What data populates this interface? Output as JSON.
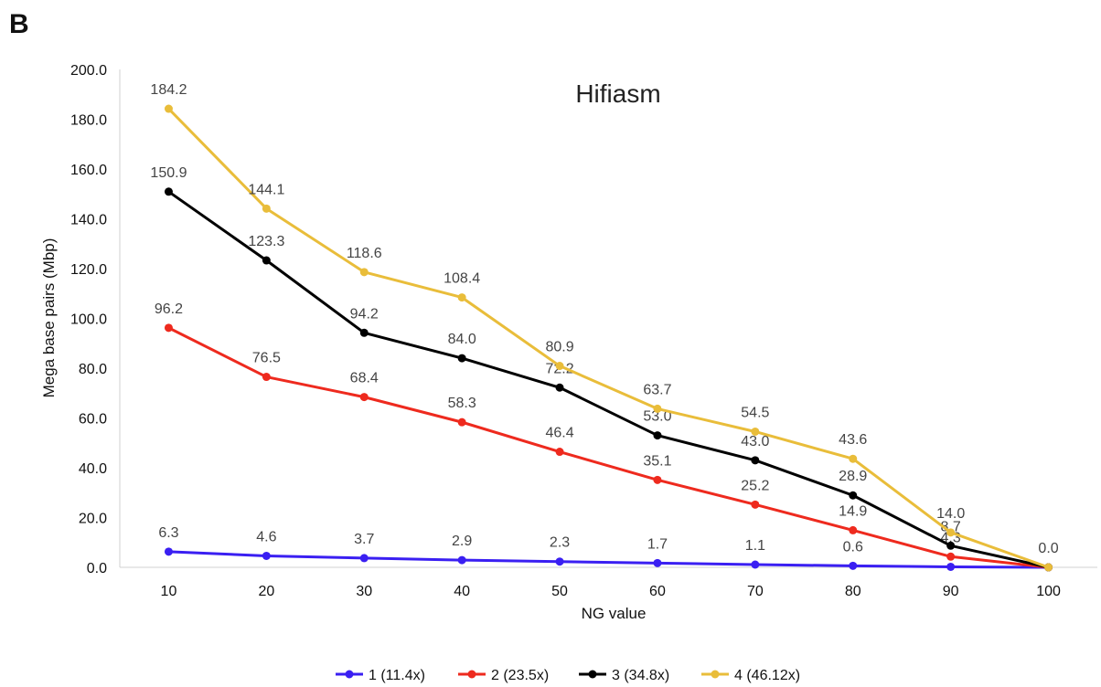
{
  "panel_label": "B",
  "chart_data": {
    "type": "line",
    "title": "Hifiasm",
    "xlabel": "NG value",
    "ylabel": "Mega base pairs (Mbp)",
    "x": [
      10,
      20,
      30,
      40,
      50,
      60,
      70,
      80,
      90,
      100
    ],
    "ylim": [
      0,
      200
    ],
    "yticks": [
      "0.0",
      "20.0",
      "40.0",
      "60.0",
      "80.0",
      "100.0",
      "120.0",
      "140.0",
      "160.0",
      "180.0",
      "200.0"
    ],
    "grid": false,
    "legend_position": "bottom",
    "series": [
      {
        "name": "1 (11.4x)",
        "color": "#3a1ff2",
        "values": [
          6.3,
          4.6,
          3.7,
          2.9,
          2.3,
          1.7,
          1.1,
          0.6,
          0.2,
          0.0
        ],
        "labels": [
          "6.3",
          "4.6",
          "3.7",
          "2.9",
          "2.3",
          "1.7",
          "1.1",
          "0.6",
          "",
          ""
        ]
      },
      {
        "name": "2 (23.5x)",
        "color": "#ee2a1e",
        "values": [
          96.2,
          76.5,
          68.4,
          58.3,
          46.4,
          35.1,
          25.2,
          14.9,
          4.3,
          0.0
        ],
        "labels": [
          "96.2",
          "76.5",
          "68.4",
          "58.3",
          "46.4",
          "35.1",
          "25.2",
          "14.9",
          "4.3",
          ""
        ]
      },
      {
        "name": "3 (34.8x)",
        "color": "#000000",
        "values": [
          150.9,
          123.3,
          94.2,
          84.0,
          72.2,
          53.0,
          43.0,
          28.9,
          8.7,
          0.0
        ],
        "labels": [
          "150.9",
          "123.3",
          "94.2",
          "84.0",
          "72.2",
          "53.0",
          "43.0",
          "28.9",
          "8.7",
          ""
        ]
      },
      {
        "name": "4 (46.12x)",
        "color": "#e9bd3a",
        "values": [
          184.2,
          144.1,
          118.6,
          108.4,
          80.9,
          63.7,
          54.5,
          43.6,
          14.0,
          0.0
        ],
        "labels": [
          "184.2",
          "144.1",
          "118.6",
          "108.4",
          "80.9",
          "63.7",
          "54.5",
          "43.6",
          "14.0",
          "0.0"
        ]
      }
    ]
  }
}
